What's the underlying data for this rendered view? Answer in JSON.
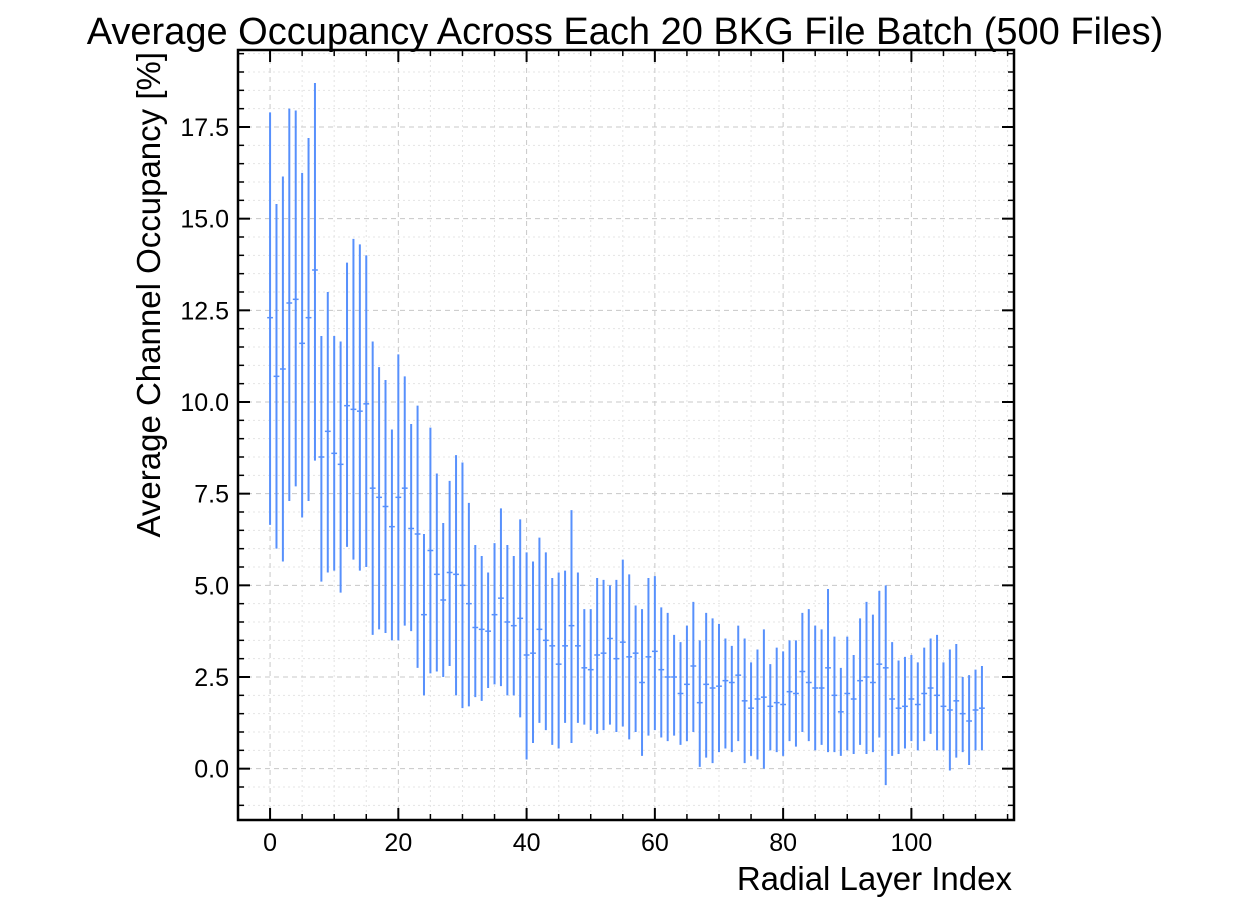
{
  "chart_data": {
    "type": "errorbar",
    "title": "Average Occupancy Across Each 20 BKG File Batch (500 Files)",
    "xlabel": "Radial Layer Index",
    "ylabel": "Average Channel Occupancy [%]",
    "xlim": [
      -5,
      116
    ],
    "ylim": [
      -1.4,
      19.6
    ],
    "xticks": [
      0,
      20,
      40,
      60,
      80,
      100
    ],
    "xtick_labels": [
      "0",
      "20",
      "40",
      "60",
      "80",
      "100"
    ],
    "yticks": [
      0,
      2.5,
      5,
      7.5,
      10,
      12.5,
      15,
      17.5
    ],
    "ytick_labels": [
      "0.0",
      "2.5",
      "5.0",
      "7.5",
      "10.0",
      "12.5",
      "15.0",
      "17.5"
    ],
    "grid": true,
    "color": "#5790fc",
    "series": [
      {
        "x": [
          0,
          1,
          2,
          3,
          4,
          5,
          6,
          7,
          8,
          9,
          10,
          11,
          12,
          13,
          14,
          15,
          16,
          17,
          18,
          19,
          20,
          21,
          22,
          23,
          24,
          25,
          26,
          27,
          28,
          29,
          30,
          31,
          32,
          33,
          34,
          35,
          36,
          37,
          38,
          39,
          40,
          41,
          42,
          43,
          44,
          45,
          46,
          47,
          48,
          49,
          50,
          51,
          52,
          53,
          54,
          55,
          56,
          57,
          58,
          59,
          60,
          61,
          62,
          63,
          64,
          65,
          66,
          67,
          68,
          69,
          70,
          71,
          72,
          73,
          74,
          75,
          76,
          77,
          78,
          79,
          80,
          81,
          82,
          83,
          84,
          85,
          86,
          87,
          88,
          89,
          90,
          91,
          92,
          93,
          94,
          95,
          96,
          97,
          98,
          99,
          100,
          101,
          102,
          103,
          104,
          105,
          106,
          107,
          108,
          109,
          110,
          111
        ],
        "y": [
          12.3,
          10.7,
          10.9,
          12.7,
          12.8,
          11.6,
          12.3,
          13.6,
          8.5,
          9.2,
          8.6,
          8.3,
          9.9,
          9.8,
          9.75,
          9.95,
          7.65,
          7.4,
          7.15,
          6.6,
          7.4,
          7.65,
          6.55,
          6.4,
          4.2,
          5.95,
          5.3,
          4.6,
          5.35,
          5.3,
          5.0,
          4.5,
          3.85,
          3.8,
          3.75,
          4.2,
          4.65,
          4.0,
          3.9,
          4.1,
          3.1,
          3.15,
          3.8,
          3.5,
          3.35,
          2.85,
          3.35,
          3.9,
          3.35,
          2.75,
          2.7,
          3.1,
          3.15,
          3.55,
          3.0,
          3.45,
          3.05,
          3.15,
          2.35,
          3.05,
          3.2,
          2.7,
          2.5,
          2.5,
          2.05,
          2.3,
          2.8,
          1.8,
          2.3,
          2.2,
          2.25,
          2.4,
          2.35,
          2.55,
          1.85,
          1.65,
          1.9,
          1.95,
          1.7,
          1.8,
          1.75,
          2.1,
          2.05,
          2.65,
          2.35,
          2.2,
          2.2,
          2.75,
          2.0,
          1.55,
          2.05,
          1.9,
          2.4,
          2.5,
          2.35,
          2.85,
          2.75,
          1.9,
          1.65,
          1.7,
          1.9,
          1.75,
          2.05,
          2.2,
          2.0,
          1.7,
          1.6,
          1.85,
          1.5,
          1.3,
          1.6,
          1.65
        ],
        "yerr_low": [
          6.65,
          6.0,
          5.65,
          7.3,
          7.7,
          6.85,
          7.3,
          8.4,
          5.1,
          5.35,
          5.4,
          4.8,
          6.05,
          5.7,
          5.4,
          5.5,
          3.65,
          3.8,
          3.7,
          3.5,
          3.5,
          3.9,
          3.75,
          2.75,
          2.0,
          2.6,
          2.65,
          2.5,
          2.8,
          2.0,
          1.65,
          1.7,
          1.95,
          1.85,
          2.2,
          2.3,
          2.25,
          2.0,
          2.0,
          1.4,
          0.25,
          0.7,
          1.25,
          1.05,
          0.65,
          0.55,
          1.25,
          0.7,
          1.25,
          1.2,
          1.05,
          0.95,
          1.05,
          1.2,
          1.0,
          1.15,
          0.8,
          1.0,
          0.35,
          0.9,
          1.05,
          0.85,
          0.75,
          0.9,
          0.65,
          0.75,
          1.0,
          0.05,
          0.3,
          0.15,
          0.45,
          0.55,
          0.45,
          0.75,
          0.15,
          0.35,
          0.25,
          0.0,
          0.5,
          0.45,
          0.35,
          0.75,
          0.6,
          1.0,
          0.75,
          0.5,
          0.65,
          0.45,
          0.45,
          0.35,
          0.5,
          0.4,
          0.65,
          0.4,
          0.45,
          0.85,
          -0.45,
          0.35,
          0.4,
          0.55,
          0.75,
          0.5,
          0.75,
          0.95,
          0.5,
          0.5,
          -0.05,
          0.3,
          0.45,
          0.1,
          0.5,
          0.5
        ],
        "yerr_high": [
          17.9,
          15.4,
          16.15,
          18.0,
          17.95,
          16.25,
          17.2,
          18.7,
          11.8,
          13.0,
          11.8,
          11.65,
          13.8,
          14.45,
          14.3,
          14.0,
          11.65,
          10.95,
          10.6,
          9.25,
          11.3,
          10.7,
          9.4,
          9.9,
          6.4,
          9.3,
          8.05,
          6.7,
          7.85,
          8.55,
          8.35,
          7.25,
          6.1,
          5.8,
          5.35,
          6.15,
          7.1,
          6.1,
          5.8,
          6.8,
          5.9,
          5.65,
          6.3,
          5.9,
          5.2,
          5.35,
          5.4,
          7.05,
          5.35,
          4.35,
          4.35,
          5.2,
          5.15,
          5.0,
          5.15,
          5.7,
          5.3,
          4.45,
          4.35,
          5.2,
          5.25,
          4.4,
          4.25,
          3.65,
          3.45,
          3.9,
          4.55,
          3.5,
          4.25,
          4.1,
          3.95,
          3.55,
          3.35,
          3.9,
          3.55,
          2.9,
          3.25,
          3.8,
          2.85,
          3.3,
          3.2,
          3.5,
          3.5,
          4.25,
          4.35,
          3.9,
          3.8,
          4.9,
          3.6,
          2.75,
          3.6,
          3.1,
          4.1,
          4.55,
          4.2,
          4.85,
          5.0,
          3.45,
          2.95,
          3.05,
          3.1,
          2.9,
          3.3,
          3.55,
          3.65,
          2.9,
          3.25,
          3.4,
          2.5,
          2.55,
          2.7,
          2.8
        ]
      }
    ]
  }
}
